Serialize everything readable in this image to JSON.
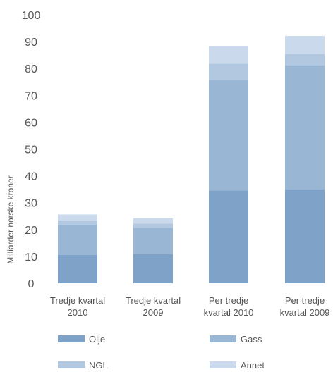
{
  "chart_data": {
    "type": "bar",
    "stacked": true,
    "categories": [
      [
        "Tredje kvartal",
        "2010"
      ],
      [
        "Tredje kvartal",
        "2009"
      ],
      [
        "Per tredje",
        "kvartal 2010"
      ],
      [
        "Per tredje",
        "kvartal 2009"
      ]
    ],
    "ylabel": "Milliarder norske kroner",
    "ylim": [
      0,
      100
    ],
    "yticks": [
      0,
      10,
      20,
      30,
      40,
      50,
      60,
      70,
      80,
      90,
      100
    ],
    "grid": false,
    "legend_position": "bottom",
    "series": [
      {
        "name": "Olje",
        "color": "#7fa2c8",
        "values": [
          10.5,
          10.8,
          34.6,
          34.9
        ]
      },
      {
        "name": "Gass",
        "color": "#9ab6d5",
        "values": [
          11.3,
          9.9,
          41.2,
          46.3
        ]
      },
      {
        "name": "NGL",
        "color": "#b2c8e1",
        "values": [
          1.5,
          1.5,
          6.0,
          4.3
        ]
      },
      {
        "name": "Annet",
        "color": "#cad9eb",
        "values": [
          2.3,
          2.0,
          6.5,
          6.6
        ]
      }
    ]
  }
}
